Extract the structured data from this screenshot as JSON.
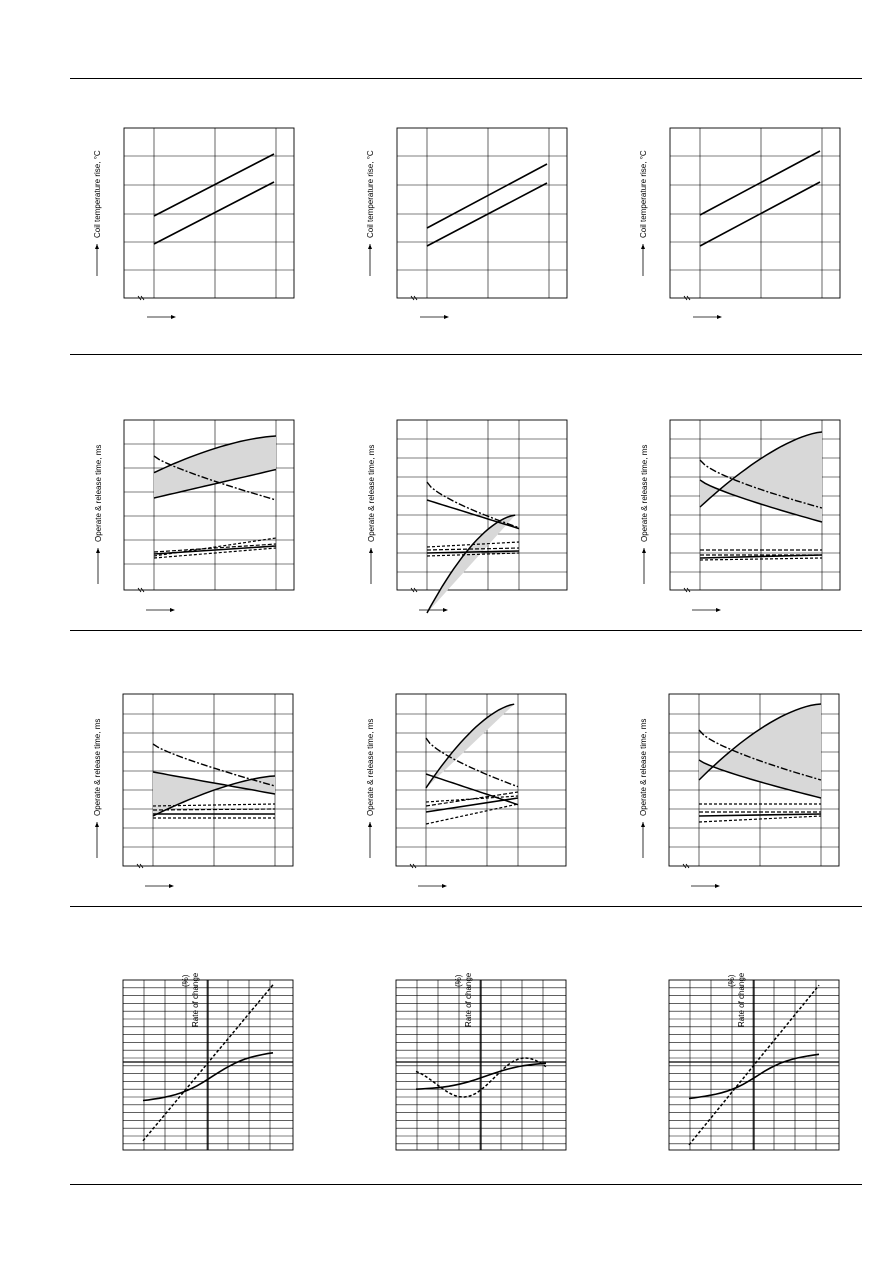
{
  "labels": {
    "coil_temp": "Coil temperature rise, °C",
    "op_rel_time": "Operate & release time, ms",
    "rate_pct": "(%)",
    "rate_change": "Rate of change"
  },
  "style": {
    "line_color": "#000000",
    "band_fill": "#d8d8d8",
    "grid_color": "#000000"
  },
  "rows": [
    {
      "row": "coil-temperature",
      "panels": [
        {
          "ylabel_key": "coil_temp"
        },
        {
          "ylabel_key": "coil_temp"
        },
        {
          "ylabel_key": "coil_temp"
        }
      ]
    },
    {
      "row": "operate-release-time-a",
      "panels": [
        {
          "ylabel_key": "op_rel_time"
        },
        {
          "ylabel_key": "op_rel_time"
        },
        {
          "ylabel_key": "op_rel_time"
        }
      ]
    },
    {
      "row": "operate-release-time-b",
      "panels": [
        {
          "ylabel_key": "op_rel_time"
        },
        {
          "ylabel_key": "op_rel_time"
        },
        {
          "ylabel_key": "op_rel_time"
        }
      ]
    },
    {
      "row": "rate-of-change",
      "panels": [
        {
          "ylabel_key": "rate_change"
        },
        {
          "ylabel_key": "rate_change"
        },
        {
          "ylabel_key": "rate_change"
        }
      ]
    }
  ]
}
